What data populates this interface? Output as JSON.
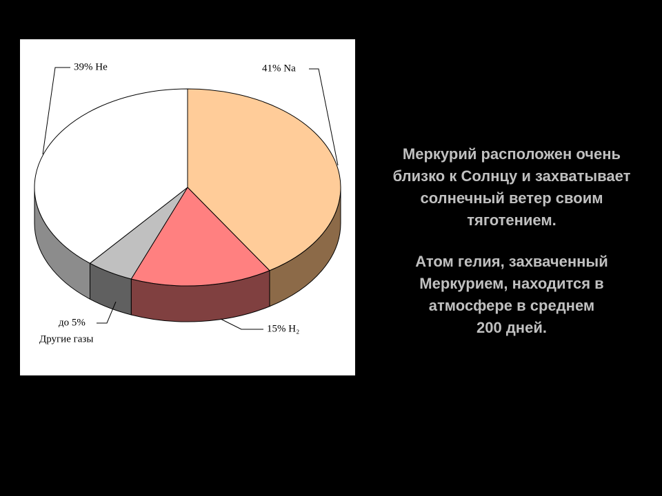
{
  "chart_data": {
    "type": "pie",
    "values": [
      41,
      15,
      5,
      39
    ],
    "value_labels": [
      "41% Na",
      "15% H₂",
      "до 5%",
      "39% He"
    ],
    "other_label": "Другие газы",
    "colors": [
      "#ffcc99",
      "#ff8080",
      "#c0c0c0",
      "#ffffff"
    ],
    "side_colors": [
      "#8c6a48",
      "#804040",
      "#606060",
      "#8c8c8c"
    ]
  },
  "slide_text": {
    "paragraphs": [
      [
        "Меркурий расположен очень",
        "близко к Солнцу и захватывает",
        "солнечный ветер своим",
        "тяготением."
      ],
      [
        "Атом гелия, захваченный",
        "Меркурием, находится в",
        "атмосфере в среднем",
        "200 дней."
      ]
    ]
  }
}
